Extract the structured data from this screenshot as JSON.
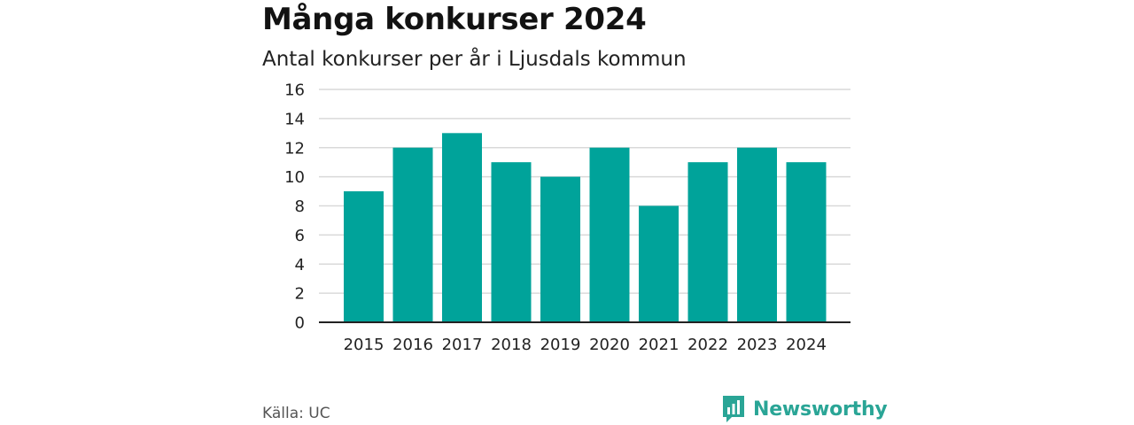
{
  "header": {
    "title": "Många konkurser 2024",
    "subtitle": "Antal konkurser per år i Ljusdals kommun"
  },
  "footer": {
    "source": "Källa: UC",
    "brand": "Newsworthy",
    "brand_icon": "bar-chart-icon"
  },
  "colors": {
    "bar": "#00a39a",
    "grid": "#d9d9d9",
    "axis": "#222222",
    "brand": "#2aa596"
  },
  "chart_data": {
    "type": "bar",
    "title": "Många konkurser 2024",
    "subtitle": "Antal konkurser per år i Ljusdals kommun",
    "categories": [
      "2015",
      "2016",
      "2017",
      "2018",
      "2019",
      "2020",
      "2021",
      "2022",
      "2023",
      "2024"
    ],
    "values": [
      9,
      12,
      13,
      11,
      10,
      12,
      8,
      11,
      12,
      11
    ],
    "ylim": [
      0,
      16
    ],
    "yticks": [
      0,
      2,
      4,
      6,
      8,
      10,
      12,
      14,
      16
    ],
    "grid": true,
    "legend": "none"
  }
}
